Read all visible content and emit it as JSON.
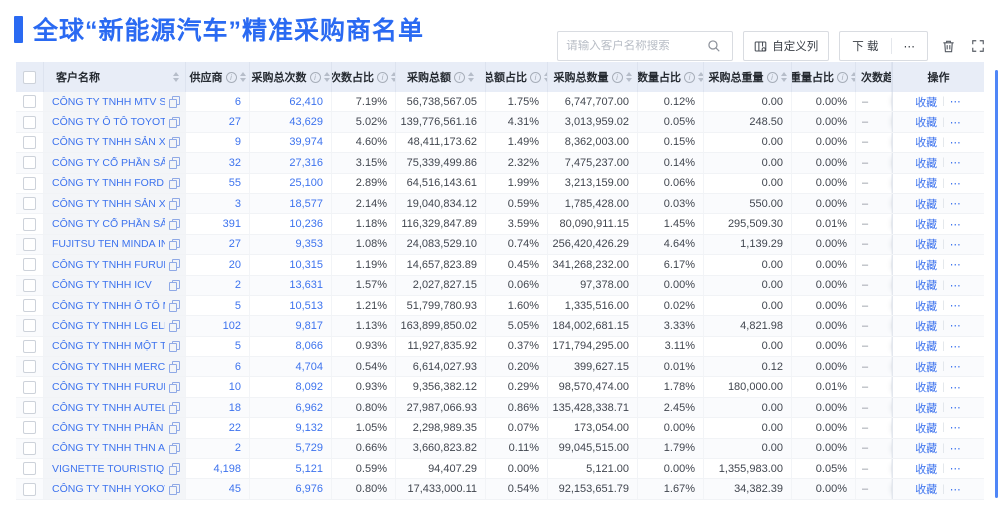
{
  "title": {
    "text": "全球“新能源汽车”精准采购商名单"
  },
  "toolbar": {
    "search_placeholder": "请输入客户名称搜索",
    "customize_label": "自定义列",
    "download_label": "下 载",
    "more_label": "⋯"
  },
  "colors": {
    "accent": "#2a6af2",
    "link": "#3d73ee",
    "header_bg": "#e8edf7"
  },
  "table": {
    "columns": [
      {
        "key": "name",
        "label": "客户名称",
        "info": false,
        "sort": true
      },
      {
        "key": "supplier",
        "label": "供应商",
        "info": true,
        "sort": true
      },
      {
        "key": "times",
        "label": "采购总次数",
        "info": true,
        "sort": true
      },
      {
        "key": "times_pct",
        "label": "次数占比",
        "info": true,
        "sort": true
      },
      {
        "key": "amount",
        "label": "采购总额",
        "info": true,
        "sort": true
      },
      {
        "key": "amount_pct",
        "label": "总额占比",
        "info": true,
        "sort": true
      },
      {
        "key": "qty",
        "label": "采购总数量",
        "info": true,
        "sort": true
      },
      {
        "key": "qty_pct",
        "label": "数量占比",
        "info": true,
        "sort": true
      },
      {
        "key": "weight",
        "label": "采购总重量",
        "info": true,
        "sort": true
      },
      {
        "key": "weight_pct",
        "label": "重量占比",
        "info": true,
        "sort": true
      },
      {
        "key": "trend",
        "label": "次数趋势",
        "info": false,
        "sort": false
      },
      {
        "key": "ops",
        "label": "操作",
        "info": false,
        "sort": false
      }
    ],
    "trend_placeholder": "–",
    "action_favorite": "收藏",
    "action_more": "⋯",
    "rows": [
      {
        "name": "CÔNG TY TNHH MTV SẢN XUẤ...",
        "supplier": "6",
        "times": "62,410",
        "times_pct": "7.19%",
        "amount": "56,738,567.05",
        "amount_pct": "1.75%",
        "qty": "6,747,707.00",
        "qty_pct": "0.12%",
        "weight": "0.00",
        "weight_pct": "0.00%"
      },
      {
        "name": "CÔNG TY Ô TÔ TOYOTA VIỆT ...",
        "supplier": "27",
        "times": "43,629",
        "times_pct": "5.02%",
        "amount": "139,776,561.16",
        "amount_pct": "4.31%",
        "qty": "3,013,959.02",
        "qty_pct": "0.05%",
        "weight": "248.50",
        "weight_pct": "0.00%"
      },
      {
        "name": "CÔNG TY TNHH SẢN XUẤT VÀ ...",
        "supplier": "9",
        "times": "39,974",
        "times_pct": "4.60%",
        "amount": "48,411,173.62",
        "amount_pct": "1.49%",
        "qty": "8,362,003.00",
        "qty_pct": "0.15%",
        "weight": "0.00",
        "weight_pct": "0.00%"
      },
      {
        "name": "CÔNG TY CỔ PHẦN SẢN XUẤT...",
        "supplier": "32",
        "times": "27,316",
        "times_pct": "3.15%",
        "amount": "75,339,499.86",
        "amount_pct": "2.32%",
        "qty": "7,475,237.00",
        "qty_pct": "0.14%",
        "weight": "0.00",
        "weight_pct": "0.00%"
      },
      {
        "name": "CÔNG TY TNHH FORD VIỆT NAM",
        "supplier": "55",
        "times": "25,100",
        "times_pct": "2.89%",
        "amount": "64,516,143.61",
        "amount_pct": "1.99%",
        "qty": "3,213,159.00",
        "qty_pct": "0.06%",
        "weight": "0.00",
        "weight_pct": "0.00%"
      },
      {
        "name": "CÔNG TY TNHH SẢN XUẤT VÀ ...",
        "supplier": "3",
        "times": "18,577",
        "times_pct": "2.14%",
        "amount": "19,040,834.12",
        "amount_pct": "0.59%",
        "qty": "1,785,428.00",
        "qty_pct": "0.03%",
        "weight": "550.00",
        "weight_pct": "0.00%"
      },
      {
        "name": "CÔNG TY CỔ PHẦN SẢN XUẤT...",
        "supplier": "391",
        "times": "10,236",
        "times_pct": "1.18%",
        "amount": "116,329,847.89",
        "amount_pct": "3.59%",
        "qty": "80,090,911.15",
        "qty_pct": "1.45%",
        "weight": "295,509.30",
        "weight_pct": "0.01%"
      },
      {
        "name": "FUJITSU TEN MINDA INDIA PVT...",
        "supplier": "27",
        "times": "9,353",
        "times_pct": "1.08%",
        "amount": "24,083,529.10",
        "amount_pct": "0.74%",
        "qty": "256,420,426.29",
        "qty_pct": "4.64%",
        "weight": "1,139.29",
        "weight_pct": "0.00%"
      },
      {
        "name": "CÔNG TY TNHH FURUKAWA A...",
        "supplier": "20",
        "times": "10,315",
        "times_pct": "1.19%",
        "amount": "14,657,823.89",
        "amount_pct": "0.45%",
        "qty": "341,268,232.00",
        "qty_pct": "6.17%",
        "weight": "0.00",
        "weight_pct": "0.00%"
      },
      {
        "name": "CÔNG TY TNHH ICV",
        "supplier": "2",
        "times": "13,631",
        "times_pct": "1.57%",
        "amount": "2,027,827.15",
        "amount_pct": "0.06%",
        "qty": "97,378.00",
        "qty_pct": "0.00%",
        "weight": "0.00",
        "weight_pct": "0.00%"
      },
      {
        "name": "CÔNG TY TNHH Ô TÔ MITSUBI...",
        "supplier": "5",
        "times": "10,513",
        "times_pct": "1.21%",
        "amount": "51,799,780.93",
        "amount_pct": "1.60%",
        "qty": "1,335,516.00",
        "qty_pct": "0.02%",
        "weight": "0.00",
        "weight_pct": "0.00%"
      },
      {
        "name": "CÔNG TY TNHH LG ELECTRON...",
        "supplier": "102",
        "times": "9,817",
        "times_pct": "1.13%",
        "amount": "163,899,850.02",
        "amount_pct": "5.05%",
        "qty": "184,002,681.15",
        "qty_pct": "3.33%",
        "weight": "4,821.98",
        "weight_pct": "0.00%"
      },
      {
        "name": "CÔNG TY TNHH MỘT THÀNH V...",
        "supplier": "5",
        "times": "8,066",
        "times_pct": "0.93%",
        "amount": "11,927,835.92",
        "amount_pct": "0.37%",
        "qty": "171,794,295.00",
        "qty_pct": "3.11%",
        "weight": "0.00",
        "weight_pct": "0.00%"
      },
      {
        "name": "CÔNG TY TNHH MERCEDES–B...",
        "supplier": "6",
        "times": "4,704",
        "times_pct": "0.54%",
        "amount": "6,614,027.93",
        "amount_pct": "0.20%",
        "qty": "399,627.15",
        "qty_pct": "0.01%",
        "weight": "0.12",
        "weight_pct": "0.00%"
      },
      {
        "name": "CÔNG TY TNHH FURUKAWA A...",
        "supplier": "10",
        "times": "8,092",
        "times_pct": "0.93%",
        "amount": "9,356,382.12",
        "amount_pct": "0.29%",
        "qty": "98,570,474.00",
        "qty_pct": "1.78%",
        "weight": "180,000.00",
        "weight_pct": "0.01%"
      },
      {
        "name": "CÔNG TY TNHH AUTEL VIỆT N...",
        "supplier": "18",
        "times": "6,962",
        "times_pct": "0.80%",
        "amount": "27,987,066.93",
        "amount_pct": "0.86%",
        "qty": "135,428,338.71",
        "qty_pct": "2.45%",
        "weight": "0.00",
        "weight_pct": "0.00%"
      },
      {
        "name": "CÔNG TY TNHH PHÂN PHỐI T...",
        "supplier": "22",
        "times": "9,132",
        "times_pct": "1.05%",
        "amount": "2,298,989.35",
        "amount_pct": "0.07%",
        "qty": "173,054.00",
        "qty_pct": "0.00%",
        "weight": "0.00",
        "weight_pct": "0.00%"
      },
      {
        "name": "CÔNG TY TNHH THN AUTOPAR...",
        "supplier": "2",
        "times": "5,729",
        "times_pct": "0.66%",
        "amount": "3,660,823.82",
        "amount_pct": "0.11%",
        "qty": "99,045,515.00",
        "qty_pct": "1.79%",
        "weight": "0.00",
        "weight_pct": "0.00%"
      },
      {
        "name": "VIGNETTE TOURISTIQUE G UNI...",
        "supplier": "4,198",
        "times": "5,121",
        "times_pct": "0.59%",
        "amount": "94,407.29",
        "amount_pct": "0.00%",
        "qty": "5,121.00",
        "qty_pct": "0.00%",
        "weight": "1,355,983.00",
        "weight_pct": "0.05%"
      },
      {
        "name": "CÔNG TY TNHH YOKOWO VIỆT...",
        "supplier": "45",
        "times": "6,976",
        "times_pct": "0.80%",
        "amount": "17,433,000.11",
        "amount_pct": "0.54%",
        "qty": "92,153,651.79",
        "qty_pct": "1.67%",
        "weight": "34,382.39",
        "weight_pct": "0.00%"
      }
    ]
  }
}
